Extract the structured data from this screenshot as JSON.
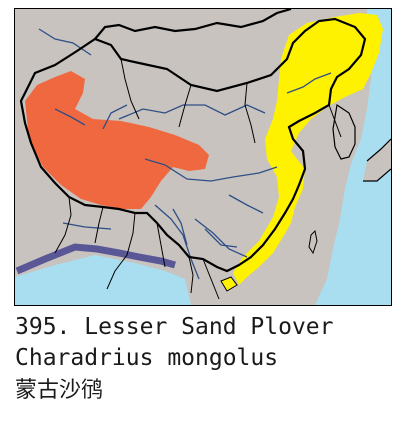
{
  "figure": {
    "number": "395.",
    "common_name": "Lesser Sand Plover",
    "scientific_name": "Charadrius mongolus",
    "chinese_name": "蒙古沙鸻"
  },
  "map": {
    "colors": {
      "sea": "#a9def0",
      "land": "#c8c3bf",
      "borders": "#000000",
      "rivers": "#2e4f86",
      "india_coast": "#5a5796",
      "breeding_range": "#f06840",
      "migration_range": "#fff200"
    }
  }
}
